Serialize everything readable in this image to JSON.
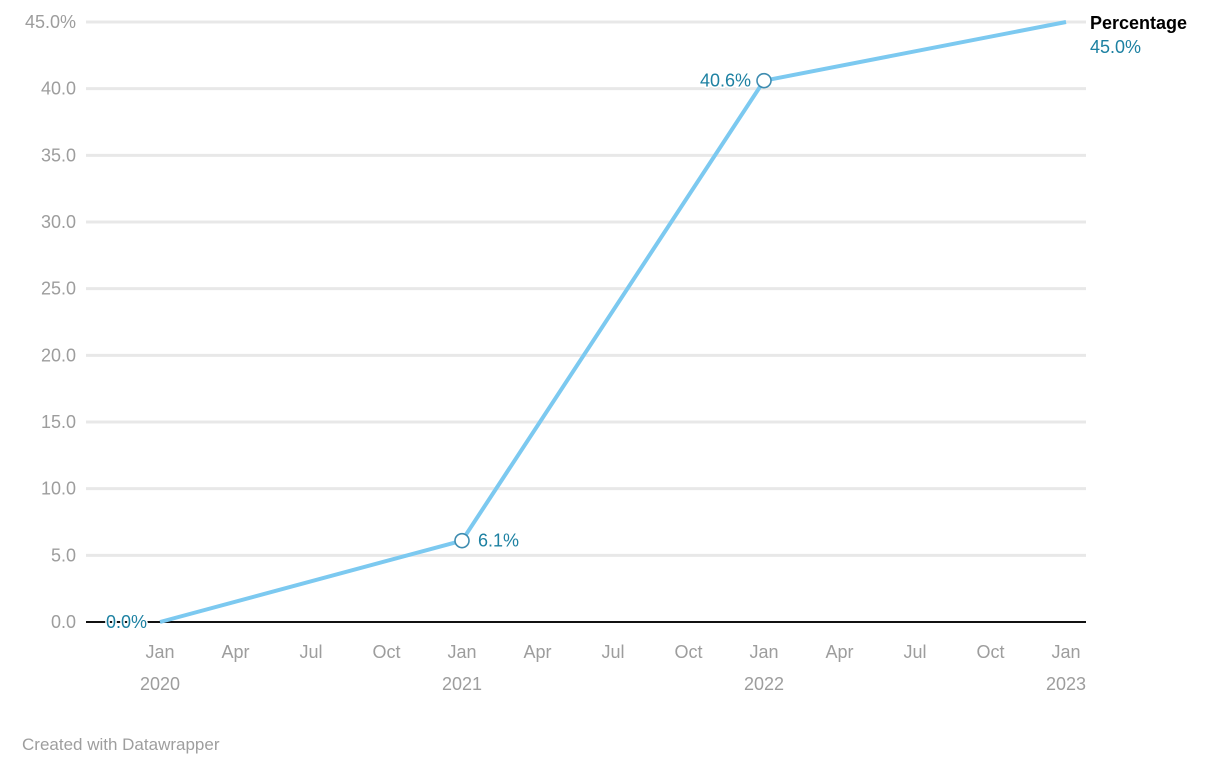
{
  "chart_data": {
    "type": "line",
    "title": "",
    "series": [
      {
        "name": "Percentage",
        "x": [
          "Jan 2020",
          "Jan 2021",
          "Jan 2022",
          "Jan 2023"
        ],
        "x_months": [
          0,
          12,
          24,
          36
        ],
        "values": [
          0.0,
          6.1,
          40.6,
          45.0
        ]
      }
    ],
    "point_labels": [
      {
        "text": "0.0%",
        "side": "left",
        "marker": false
      },
      {
        "text": "6.1%",
        "side": "right",
        "marker": true
      },
      {
        "text": "40.6%",
        "side": "left",
        "marker": true
      },
      {
        "text": "45.0%",
        "side": "legend",
        "marker": false
      }
    ],
    "y_ticks": [
      0,
      5,
      10,
      15,
      20,
      25,
      30,
      35,
      40,
      45
    ],
    "y_tick_labels": [
      "0.0",
      "5.0",
      "10.0",
      "15.0",
      "20.0",
      "25.0",
      "30.0",
      "35.0",
      "40.0",
      "45.0%"
    ],
    "ylim": [
      0,
      45
    ],
    "x_tick_months": [
      0,
      3,
      6,
      9,
      12,
      15,
      18,
      21,
      24,
      27,
      30,
      33,
      36
    ],
    "x_tick_labels": [
      "Jan",
      "Apr",
      "Jul",
      "Oct",
      "Jan",
      "Apr",
      "Jul",
      "Oct",
      "Jan",
      "Apr",
      "Jul",
      "Oct",
      "Jan"
    ],
    "x_tick_years": {
      "0": "2020",
      "12": "2021",
      "24": "2022",
      "36": "2023"
    },
    "grid": "horizontal-only",
    "legend_position": "top-right"
  },
  "legend": {
    "title": "Percentage",
    "value": "45.0%"
  },
  "footer": {
    "credit": "Created with Datawrapper"
  },
  "colors": {
    "line": "#7cc9f0",
    "marker_stroke": "#3e8cb0",
    "marker_fill": "#ffffff",
    "value_label": "#1d81a2",
    "axis_text": "#9d9d9d",
    "gridline": "#e8e8e8",
    "baseline": "#111111",
    "legend_title": "#000000",
    "footer_text": "#9e9e9e"
  }
}
